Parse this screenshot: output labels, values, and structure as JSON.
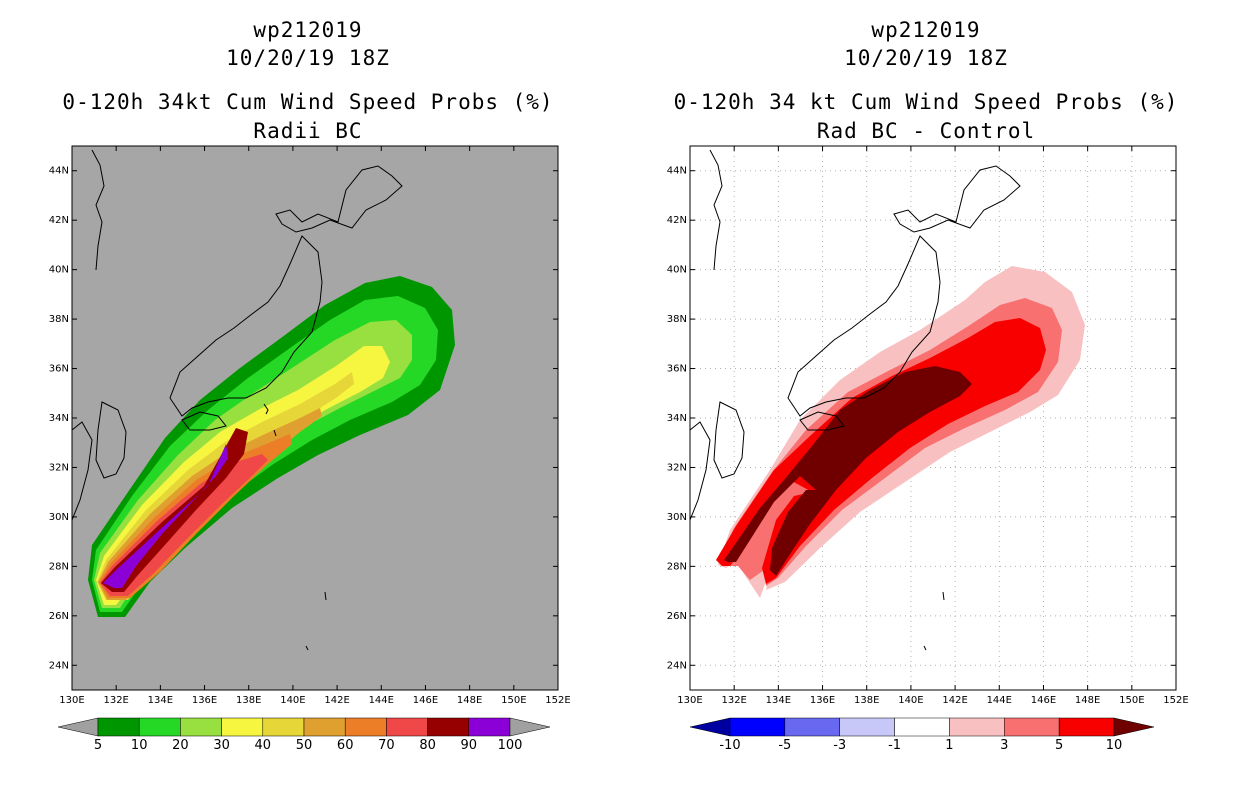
{
  "chart_data": [
    {
      "type": "heatmap",
      "storm_id": "wp212019",
      "date": "10/20/19 18Z",
      "title": "0-120h 34kt Cum Wind Speed Probs (%)",
      "subtitle": "Radii BC",
      "x_ticks": [
        "130E",
        "132E",
        "134E",
        "136E",
        "138E",
        "140E",
        "142E",
        "144E",
        "146E",
        "148E",
        "150E",
        "152E"
      ],
      "y_ticks": [
        "24N",
        "26N",
        "28N",
        "30N",
        "32N",
        "34N",
        "36N",
        "38N",
        "40N",
        "42N",
        "44N"
      ],
      "xlim": [
        130,
        152
      ],
      "ylim": [
        23,
        45
      ],
      "colorbar_labels": [
        "5",
        "10",
        "20",
        "30",
        "40",
        "50",
        "60",
        "70",
        "80",
        "90",
        "100"
      ],
      "colorbar_colors": [
        "#a0a0a0",
        "#009600",
        "#26d826",
        "#98e040",
        "#f6f640",
        "#e6d638",
        "#e0a030",
        "#ec7e28",
        "#f04848",
        "#960000",
        "#8c00d8",
        "#a0a0a0"
      ],
      "background": "#a6a6a6"
    },
    {
      "type": "heatmap",
      "storm_id": "wp212019",
      "date": "10/20/19 18Z",
      "title": "0-120h 34 kt Cum Wind Speed Probs (%)",
      "subtitle": "Rad BC - Control",
      "x_ticks": [
        "130E",
        "132E",
        "134E",
        "136E",
        "138E",
        "140E",
        "142E",
        "144E",
        "146E",
        "148E",
        "150E",
        "152E"
      ],
      "y_ticks": [
        "24N",
        "26N",
        "28N",
        "30N",
        "32N",
        "34N",
        "36N",
        "38N",
        "40N",
        "42N",
        "44N"
      ],
      "xlim": [
        130,
        152
      ],
      "ylim": [
        23,
        45
      ],
      "colorbar_labels": [
        "-10",
        "-5",
        "-3",
        "-1",
        "1",
        "3",
        "5",
        "10"
      ],
      "colorbar_colors": [
        "#0000a0",
        "#0000ff",
        "#6868f0",
        "#c8c8f8",
        "#ffffff",
        "#f8c0c0",
        "#f87070",
        "#f80000",
        "#700000"
      ],
      "background": "#ffffff"
    }
  ]
}
